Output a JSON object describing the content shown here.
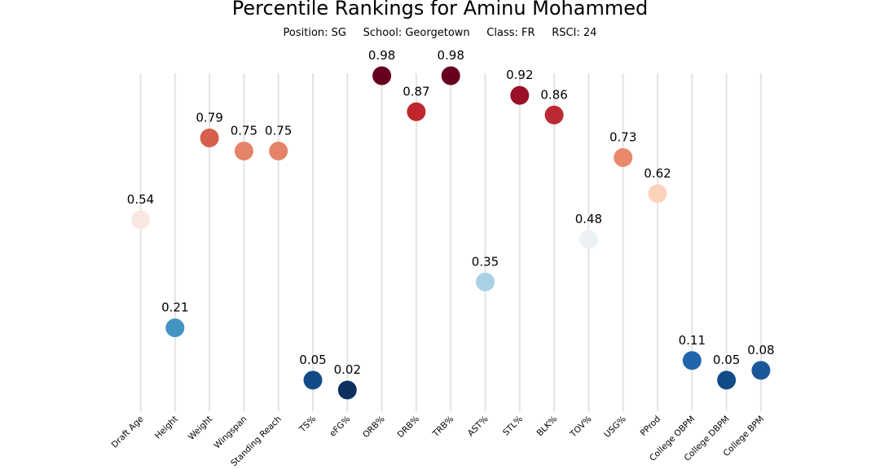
{
  "chart_data": {
    "type": "scatter",
    "title": "Percentile Rankings for Aminu Mohammed",
    "subtitle": "Position: SG     School: Georgetown     Class: FR     RSCI: 24",
    "categories": [
      "Draft Age",
      "Height",
      "Weight",
      "Wingspan",
      "Standing Reach",
      "TS%",
      "eFG%",
      "ORB%",
      "DRB%",
      "TRB%",
      "AST%",
      "STL%",
      "BLK%",
      "TOV%",
      "USG%",
      "PProd",
      "College OBPM",
      "College DBPM",
      "College BPM"
    ],
    "values": [
      0.54,
      0.21,
      0.79,
      0.75,
      0.75,
      0.05,
      0.02,
      0.98,
      0.87,
      0.98,
      0.35,
      0.92,
      0.86,
      0.48,
      0.73,
      0.62,
      0.11,
      0.05,
      0.08
    ],
    "colors": [
      "#f9e8e1",
      "#4393c3",
      "#d6604d",
      "#e58368",
      "#e58368",
      "#134b88",
      "#0d3061",
      "#67001f",
      "#c0272d",
      "#67001f",
      "#a9d0e6",
      "#9a1028",
      "#bb2a34",
      "#ecf1f4",
      "#e8896c",
      "#fcd2bb",
      "#2166ac",
      "#134b88",
      "#1a5899"
    ],
    "value_labels": [
      "0.54",
      "0.21",
      "0.79",
      "0.75",
      "0.75",
      "0.05",
      "0.02",
      "0.98",
      "0.87",
      "0.98",
      "0.35",
      "0.92",
      "0.86",
      "0.48",
      "0.73",
      "0.62",
      "0.11",
      "0.05",
      "0.08"
    ],
    "ylim": [
      0,
      1
    ],
    "grid": "vertical"
  }
}
